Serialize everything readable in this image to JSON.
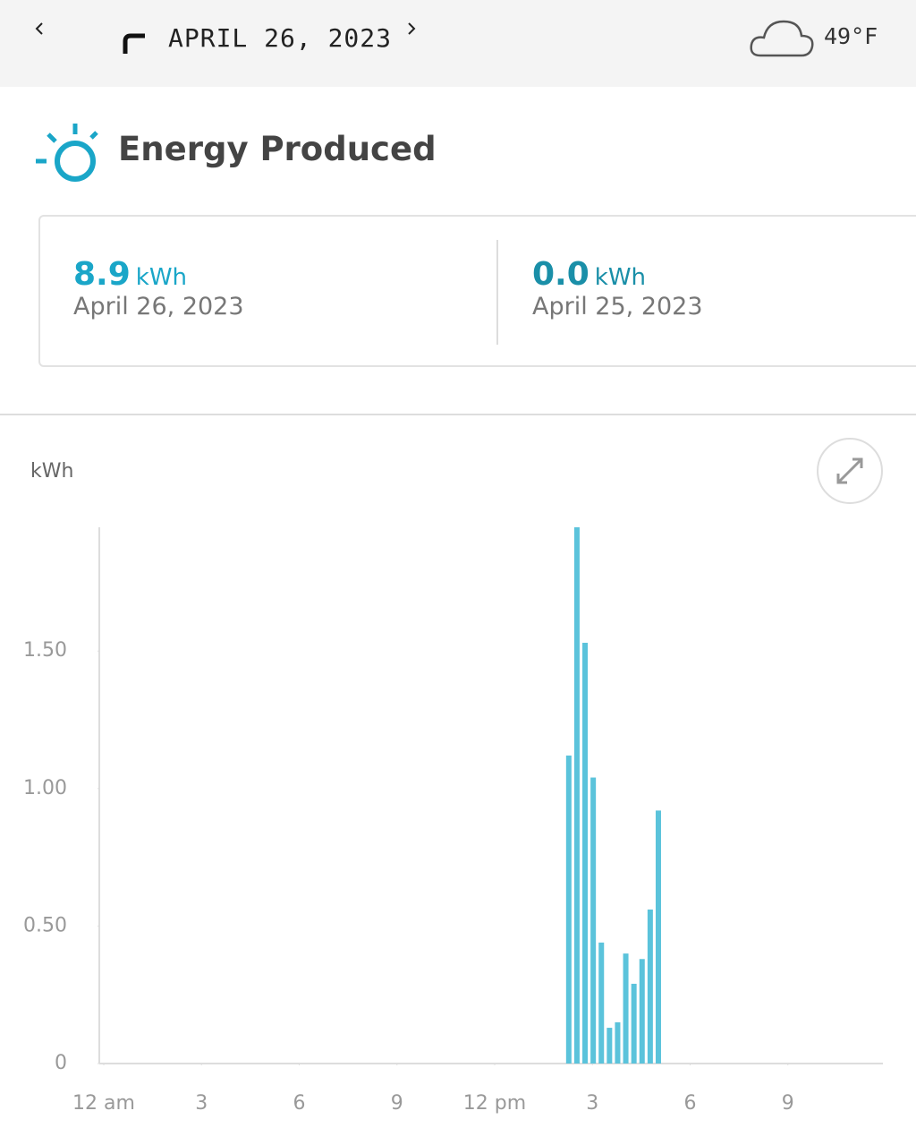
{
  "header": {
    "date": "APRIL 26, 2023",
    "temperature": "49°F"
  },
  "section_title": "Energy Produced",
  "summary": [
    {
      "value": "8.9",
      "unit": "kWh",
      "date": "April 26, 2023"
    },
    {
      "value": "0.0",
      "unit": "kWh",
      "date": "April 25, 2023"
    }
  ],
  "chart_data": {
    "type": "bar",
    "y_label": "kWh",
    "color": "#5bc3db",
    "x": [
      14,
      14.25,
      14.5,
      14.75,
      15,
      15.25,
      15.5,
      15.75,
      16,
      16.25,
      16.5,
      16.75
    ],
    "values": [
      1.12,
      1.95,
      1.53,
      1.04,
      0.44,
      0.13,
      0.15,
      0.4,
      0.29,
      0.38,
      0.56,
      0.92
    ],
    "xlim": [
      0,
      24
    ],
    "xticks": [
      {
        "value": 0,
        "label": "12 am"
      },
      3,
      6,
      9,
      {
        "value": 12,
        "label": "12 pm"
      },
      {
        "value": 15,
        "label": "3"
      },
      {
        "value": 18,
        "label": "6"
      },
      {
        "value": 21,
        "label": "9"
      }
    ],
    "ylim": [
      0,
      1.95
    ],
    "yticks": [
      0,
      {
        "value": 0.5,
        "label": "0.50"
      },
      {
        "value": 1,
        "label": "1.00"
      },
      {
        "value": 1.5,
        "label": "1.50"
      }
    ],
    "grid": false
  }
}
